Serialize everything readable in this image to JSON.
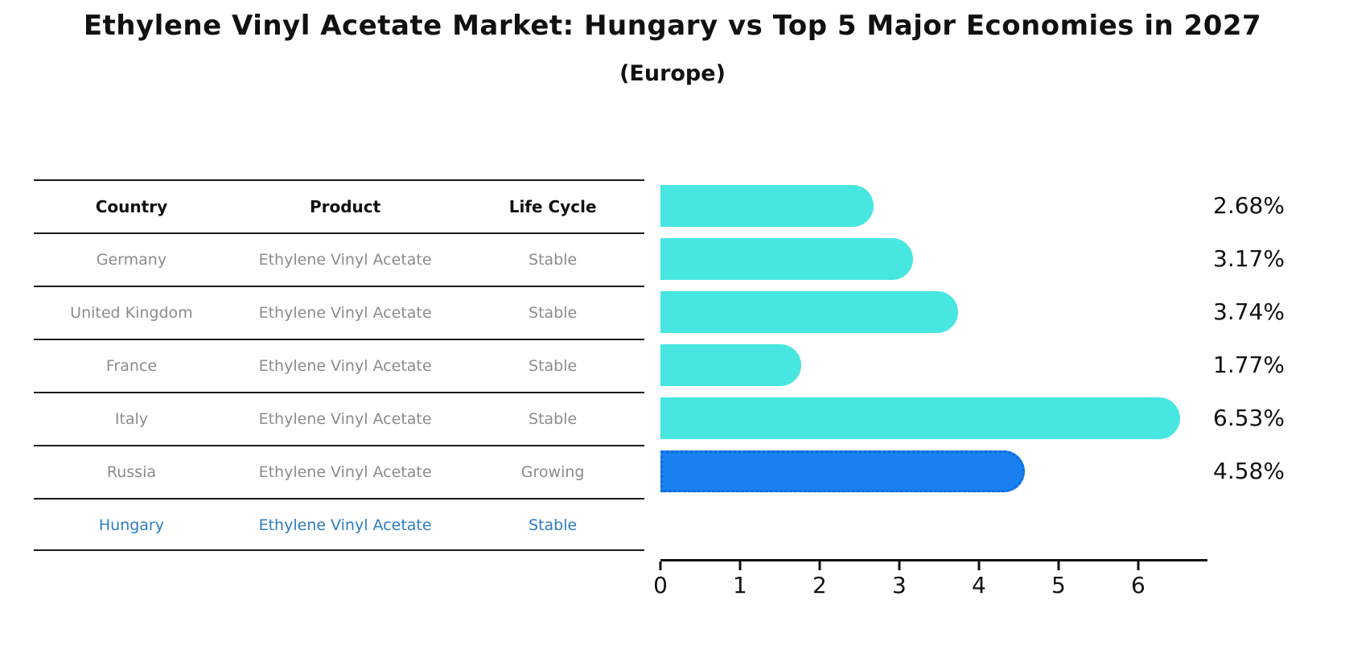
{
  "title": "Ethylene Vinyl Acetate Market: Hungary vs Top 5 Major Economies in 2027",
  "subtitle": "(Europe)",
  "table": {
    "headers": [
      "Country",
      "Product",
      "Life Cycle"
    ],
    "rows": [
      {
        "country": "Germany",
        "product": "Ethylene Vinyl Acetate",
        "life_cycle": "Stable",
        "highlight": false
      },
      {
        "country": "United Kingdom",
        "product": "Ethylene Vinyl Acetate",
        "life_cycle": "Stable",
        "highlight": false
      },
      {
        "country": "France",
        "product": "Ethylene Vinyl Acetate",
        "life_cycle": "Stable",
        "highlight": false
      },
      {
        "country": "Italy",
        "product": "Ethylene Vinyl Acetate",
        "life_cycle": "Stable",
        "highlight": false
      },
      {
        "country": "Russia",
        "product": "Ethylene Vinyl Acetate",
        "life_cycle": "Growing",
        "highlight": false
      },
      {
        "country": "Hungary",
        "product": "Ethylene Vinyl Acetate",
        "life_cycle": "Stable",
        "highlight": true
      }
    ]
  },
  "chart_data": {
    "type": "bar",
    "orientation": "horizontal",
    "title": "Ethylene Vinyl Acetate Market: Hungary vs Top 5 Major Economies in 2027 (Europe)",
    "categories": [
      "Germany",
      "United Kingdom",
      "France",
      "Italy",
      "Russia",
      "Hungary"
    ],
    "values": [
      2.68,
      3.17,
      3.74,
      1.77,
      6.53,
      4.58
    ],
    "labels": [
      "2.68%",
      "3.17%",
      "3.74%",
      "1.77%",
      "6.53%",
      "4.58%"
    ],
    "highlight_index": 5,
    "xlim": [
      0,
      6.87
    ],
    "xticks": [
      0,
      1,
      2,
      3,
      4,
      5,
      6
    ],
    "grid": false,
    "legend": false,
    "xlabel": "",
    "ylabel": ""
  },
  "colors": {
    "bar": "#48e6e0",
    "highlight_bar": "#1a80f0",
    "highlight_border": "#0e6be0",
    "highlight_text": "#2e7cc3",
    "text": "#111111",
    "muted_text": "#8c8c8c"
  }
}
